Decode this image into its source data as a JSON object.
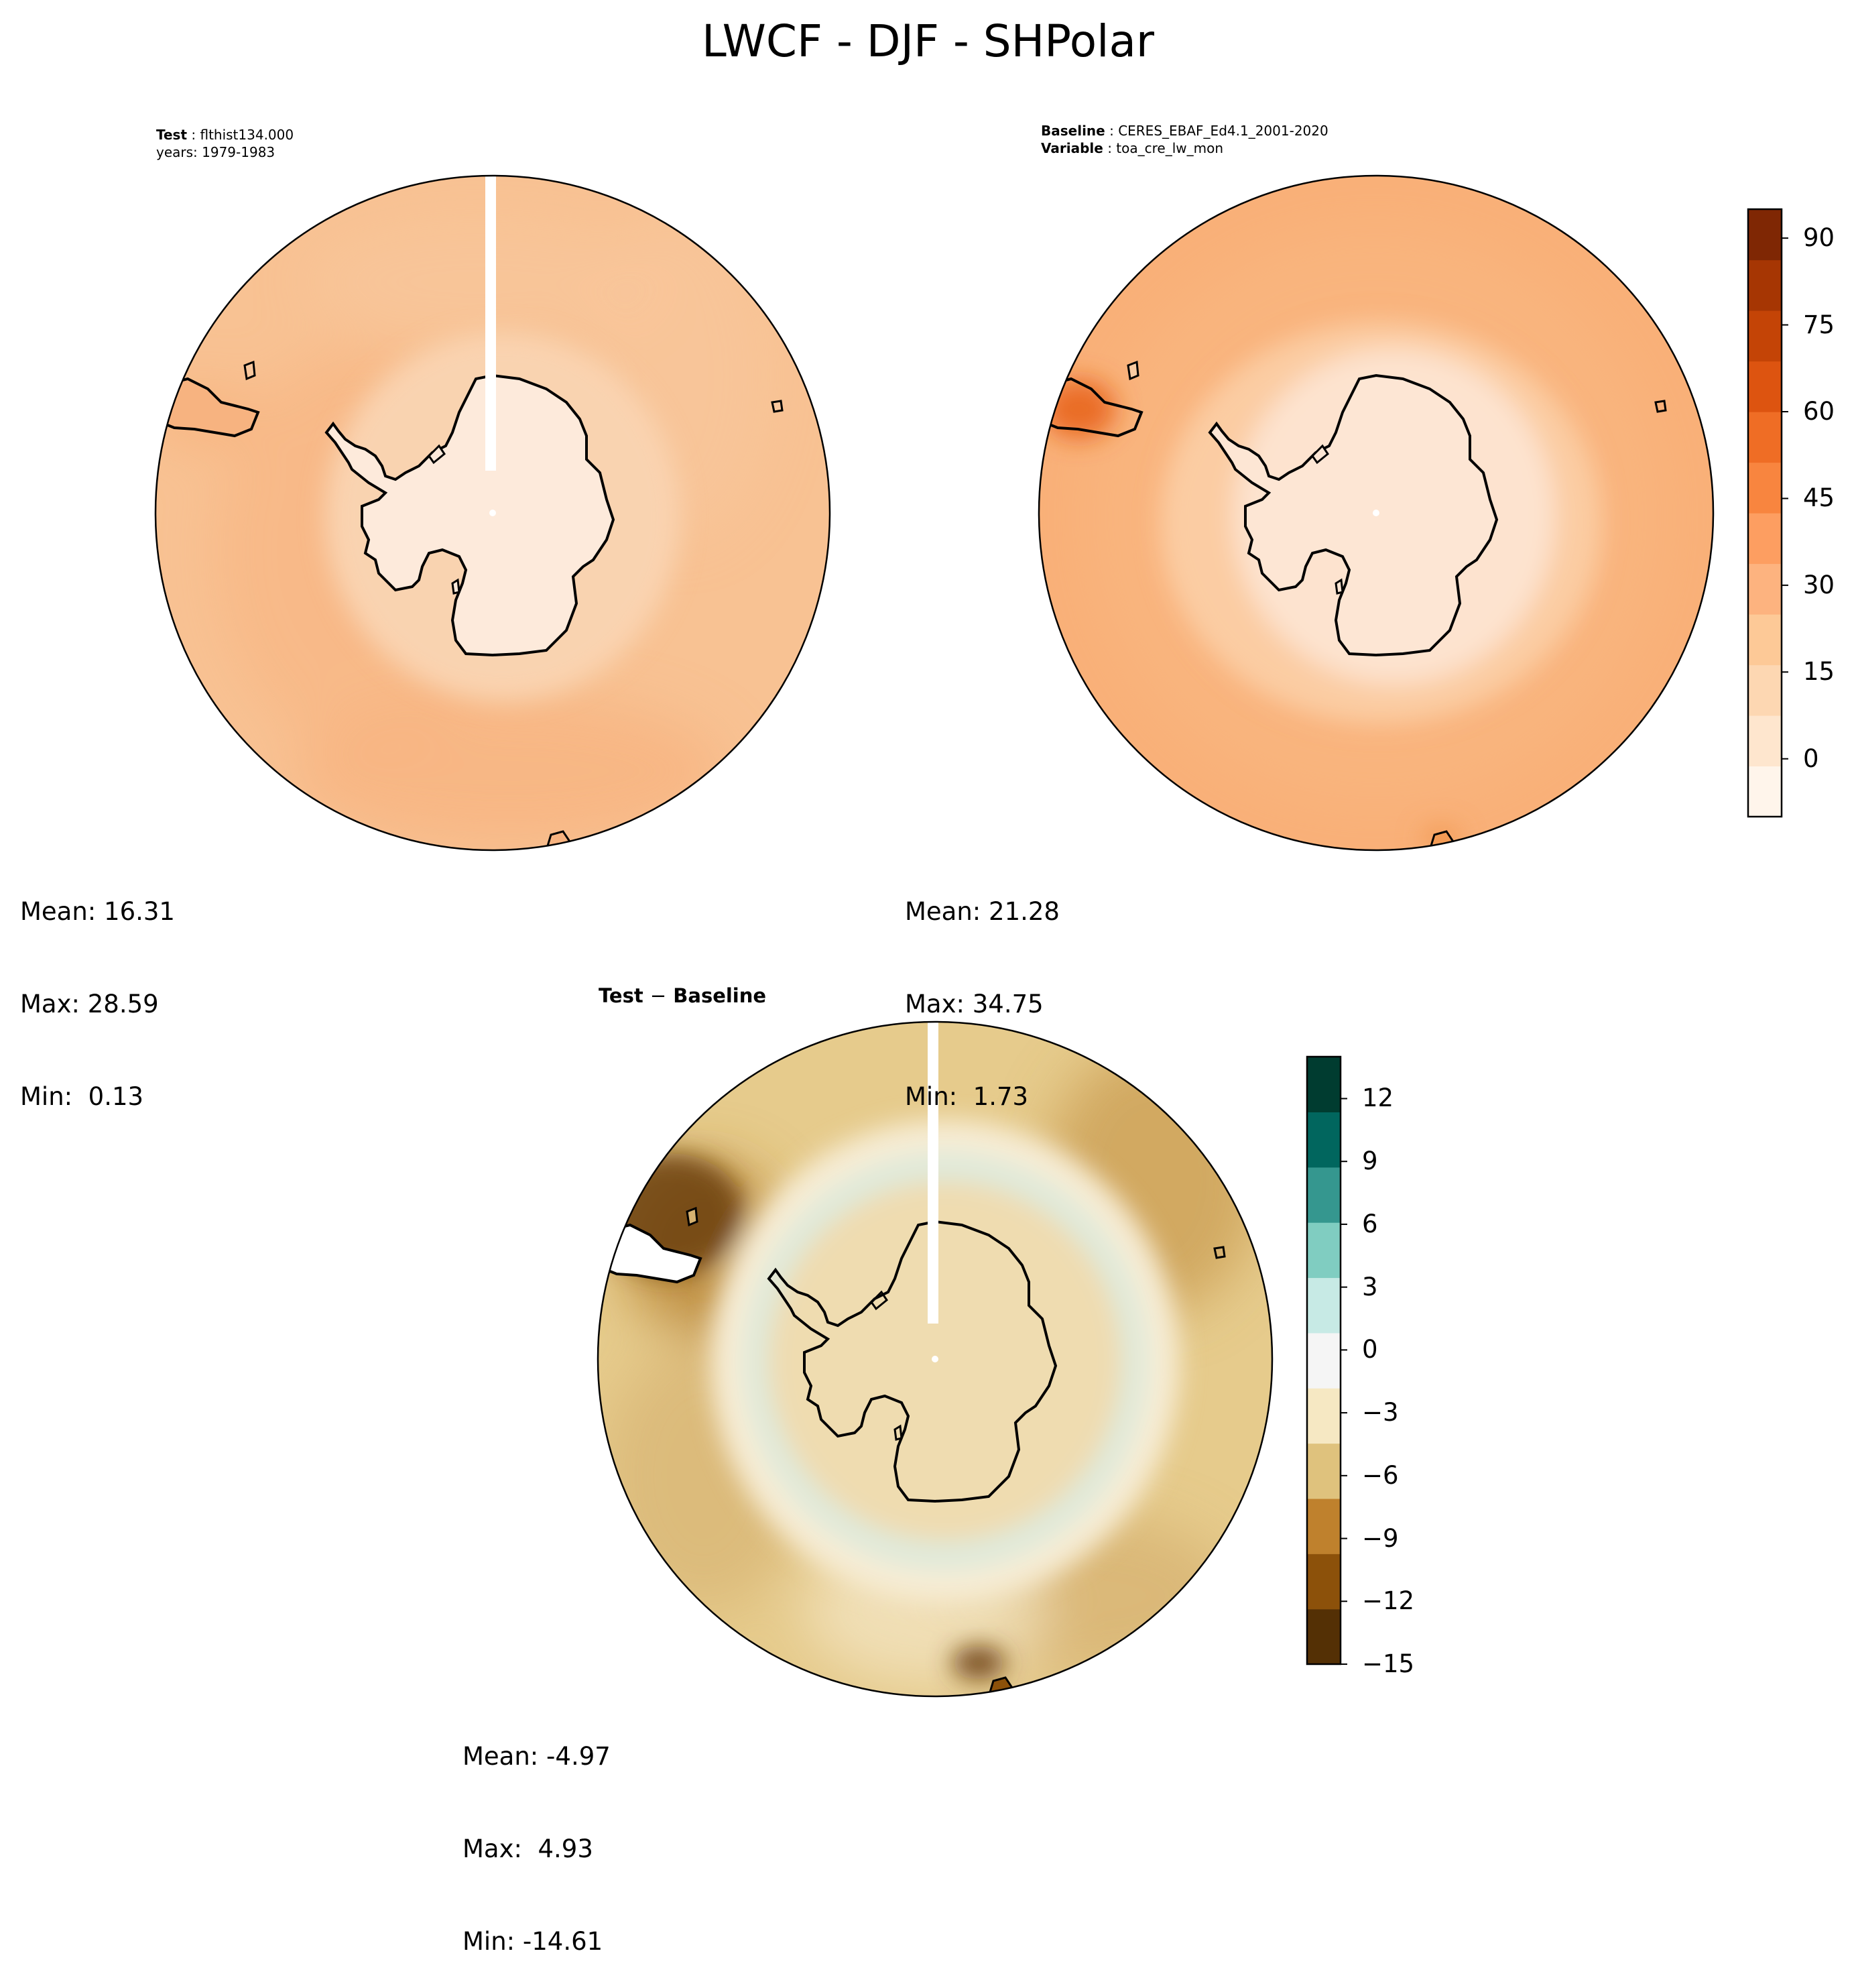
{
  "title": "LWCF - DJF - SHPolar",
  "panels": [
    {
      "id": "test",
      "header": [
        {
          "key": "Test",
          "value": "flthist134.000"
        },
        {
          "key": "",
          "value": "years: 1979-1983"
        }
      ],
      "stats": {
        "mean": "16.31",
        "max": "28.59",
        "min": "0.13"
      },
      "colors": {
        "ocean": "#f8c293",
        "ocean_band": "#f7b380",
        "ice": "#fdeadb",
        "margin": "#f9d3b0"
      }
    },
    {
      "id": "baseline",
      "header": [
        {
          "key": "Baseline",
          "value": "CERES_EBAF_Ed4.1_2001-2020"
        },
        {
          "key": "Variable",
          "value": "toa_cre_lw_mon"
        }
      ],
      "stats": {
        "mean": "21.28",
        "max": "34.75",
        "min": "1.73"
      },
      "colors": {
        "ocean": "#f9b078",
        "ice": "#fde3cf",
        "margin": "#fbcca3",
        "hotspot": "#e8621b"
      }
    }
  ],
  "diff": {
    "title_left": "Test",
    "title_op": "−",
    "title_right": "Baseline",
    "stats": {
      "mean": "-4.97",
      "max": "4.93",
      "min": "-14.61"
    },
    "colors": {
      "field": "#e6cb8c",
      "dark": "#b47d2b",
      "light": "#f6ecd4",
      "ice": "#efdcb0",
      "teal": "#cdeae3",
      "deep": "#6b3e0b"
    }
  },
  "colorbar_main": {
    "ticks": [
      "90",
      "75",
      "60",
      "45",
      "30",
      "15",
      "0"
    ],
    "tick_values": [
      90,
      75,
      60,
      45,
      30,
      15,
      0
    ],
    "range": [
      -10,
      95
    ],
    "colors": [
      "#fff5eb",
      "#fee6ce",
      "#fdd7b2",
      "#fdc997",
      "#fdb37f",
      "#fd9e61",
      "#f8853f",
      "#ef6d25",
      "#dd5410",
      "#c44406",
      "#a63603",
      "#7f2704"
    ]
  },
  "colorbar_diff": {
    "ticks": [
      "12",
      "9",
      "6",
      "3",
      "0",
      "−3",
      "−6",
      "−9",
      "−12",
      "−15"
    ],
    "tick_values": [
      12,
      9,
      6,
      3,
      0,
      -3,
      -6,
      -9,
      -12,
      -15
    ],
    "range": [
      -15,
      14
    ],
    "colors": [
      "#543005",
      "#8c510a",
      "#bf812d",
      "#dfc27d",
      "#f6e8c3",
      "#f5f5f5",
      "#c7eae5",
      "#80cdc1",
      "#35978f",
      "#01665e",
      "#003c30"
    ]
  }
}
